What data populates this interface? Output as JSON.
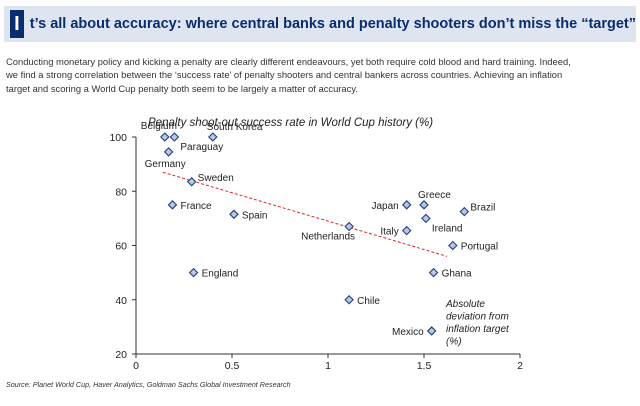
{
  "banner": {
    "mark": "I",
    "title": "t’s all about accuracy: where central banks and penalty shooters don’t miss the “target”"
  },
  "intro": [
    "Conducting monetary policy and kicking a penalty are clearly different endeavours, yet both require cold blood and hard training. Indeed,",
    "we find a strong correlation between the ‘success rate’ of penalty shooters and central bankers across countries. Achieving an inflation",
    "target and scoring a World Cup penalty both seem to be largely a matter of accuracy."
  ],
  "source": "Source: Planet World Cup, Haver Analytics, Goldman Sachs Global Investment Research",
  "colors": {
    "banner_bg": "#dfe5f0",
    "brand": "#0a2d6e",
    "marker_fill": "#b9c8e2",
    "marker_stroke": "#1f3f7a",
    "trend": "#e0271f"
  },
  "chart_data": {
    "type": "scatter",
    "title": "Penalty shoot-out success rate in World Cup history (%)",
    "xlabel": "Absolute deviation from inflation target (%)",
    "xlabel_lines": [
      "Absolute",
      "deviation from",
      "inflation target",
      "(%)"
    ],
    "ylabel": "",
    "xlim": [
      0,
      2
    ],
    "ylim": [
      20,
      100
    ],
    "xticks": [
      0,
      0.5,
      1,
      1.5,
      2
    ],
    "xtick_labels": [
      "0",
      "0.5",
      "1",
      "1.5",
      "2"
    ],
    "yticks": [
      20,
      40,
      60,
      80,
      100
    ],
    "ytick_labels": [
      "20",
      "40",
      "60",
      "80",
      "100"
    ],
    "grid": false,
    "trendline": {
      "x": [
        0.14,
        1.62
      ],
      "y": [
        87,
        56
      ],
      "style": "dashed"
    },
    "points": [
      {
        "label": "Belgium",
        "x": 0.15,
        "y": 100,
        "label_pos": "above-left"
      },
      {
        "label": "Paraguay",
        "x": 0.2,
        "y": 100,
        "label_pos": "below-right"
      },
      {
        "label": "Germany",
        "x": 0.17,
        "y": 94.5,
        "label_pos": "below"
      },
      {
        "label": "South Korea",
        "x": 0.4,
        "y": 100,
        "label_pos": "above"
      },
      {
        "label": "Sweden",
        "x": 0.29,
        "y": 83.5,
        "label_pos": "right-up"
      },
      {
        "label": "France",
        "x": 0.19,
        "y": 75,
        "label_pos": "right"
      },
      {
        "label": "Spain",
        "x": 0.51,
        "y": 71.5,
        "label_pos": "right"
      },
      {
        "label": "England",
        "x": 0.3,
        "y": 50,
        "label_pos": "right"
      },
      {
        "label": "Netherlands",
        "x": 1.11,
        "y": 67,
        "label_pos": "below-left"
      },
      {
        "label": "Chile",
        "x": 1.11,
        "y": 40,
        "label_pos": "right"
      },
      {
        "label": "Japan",
        "x": 1.41,
        "y": 75,
        "label_pos": "left"
      },
      {
        "label": "Greece",
        "x": 1.5,
        "y": 75,
        "label_pos": "above"
      },
      {
        "label": "Italy",
        "x": 1.41,
        "y": 65.5,
        "label_pos": "left"
      },
      {
        "label": "Ireland",
        "x": 1.51,
        "y": 70,
        "label_pos": "below-right"
      },
      {
        "label": "Brazil",
        "x": 1.71,
        "y": 72.5,
        "label_pos": "right-up"
      },
      {
        "label": "Portugal",
        "x": 1.65,
        "y": 60,
        "label_pos": "right"
      },
      {
        "label": "Ghana",
        "x": 1.55,
        "y": 50,
        "label_pos": "right"
      },
      {
        "label": "Mexico",
        "x": 1.54,
        "y": 28.5,
        "label_pos": "left"
      }
    ]
  }
}
